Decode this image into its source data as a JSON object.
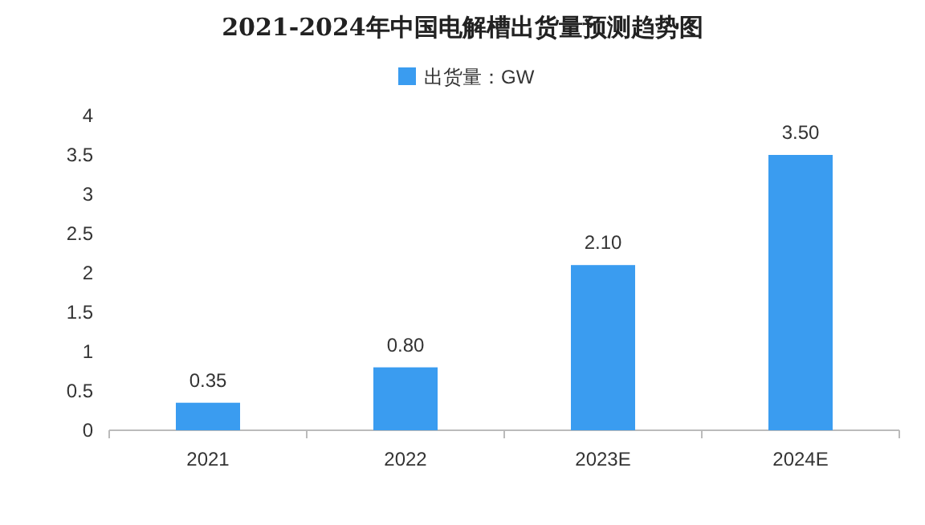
{
  "chart_data": {
    "type": "bar",
    "title": "2021-2024年中国电解槽出货量预测趋势图",
    "categories": [
      "2021",
      "2022",
      "2023E",
      "2024E"
    ],
    "series": [
      {
        "name": "出货量：GW",
        "color": "#3a9cf0",
        "values": [
          0.35,
          0.8,
          2.1,
          3.5
        ],
        "value_labels": [
          "0.35",
          "0.80",
          "2.10",
          "3.50"
        ]
      }
    ],
    "ylim": [
      0,
      4
    ],
    "yticks": [
      0,
      0.5,
      1,
      1.5,
      2,
      2.5,
      3,
      3.5,
      4
    ],
    "legend": "top"
  }
}
